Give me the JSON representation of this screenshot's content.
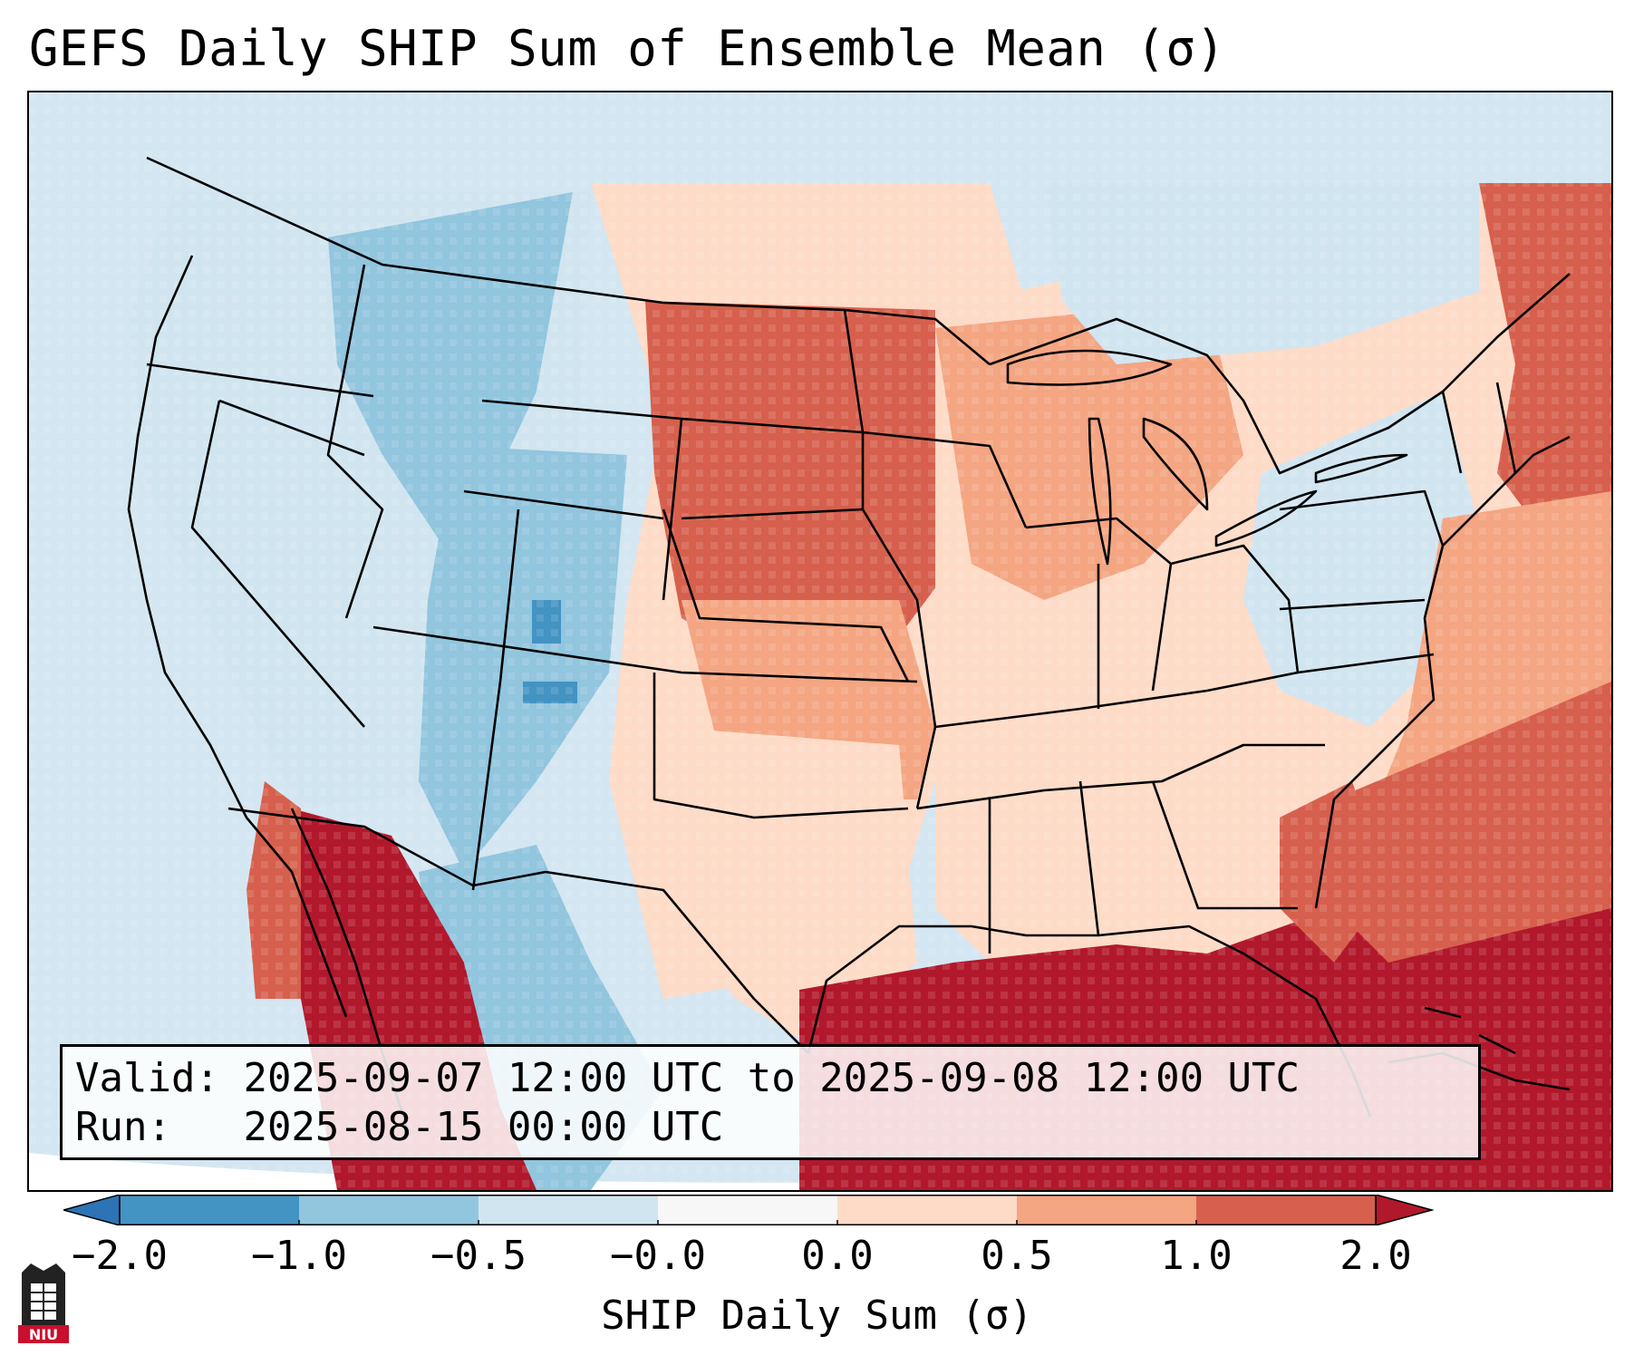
{
  "title": "GEFS Daily SHIP Sum of Ensemble Mean (σ)",
  "info": {
    "valid_label": "Valid:",
    "valid_value": "2025-09-07 12:00 UTC to 2025-09-08 12:00 UTC",
    "run_label": "Run:",
    "run_value": "2025-08-15 00:00 UTC"
  },
  "colorbar": {
    "label": "SHIP Daily Sum (σ)",
    "ticks": [
      "−2.0",
      "−1.0",
      "−0.5",
      "−0.0",
      "0.0",
      "0.5",
      "1.0",
      "2.0"
    ],
    "colors": [
      "#2c74b5",
      "#4393c3",
      "#92c5de",
      "#d1e5f0",
      "#f7f7f7",
      "#fddbc7",
      "#f4a582",
      "#d6604d",
      "#b2182b"
    ]
  },
  "logo": {
    "text": "NIU",
    "icon": "university-tower-icon"
  },
  "map": {
    "region": "Contiguous United States",
    "ocean_color": "#d3e6f1",
    "border_color": "#000000"
  }
}
